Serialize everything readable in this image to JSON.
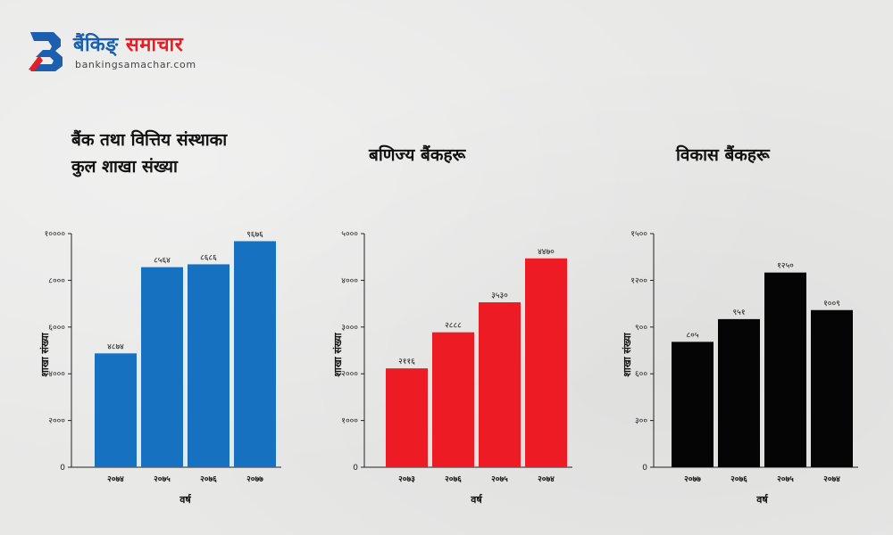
{
  "logo": {
    "name_part1": "बैंकिङ्",
    "name_part2": "समाचार",
    "url": "bankingsamachar.com"
  },
  "colors": {
    "blue": "#1672c0",
    "red": "#ed1c24",
    "black": "#050505",
    "brand_blue": "#1b5fae",
    "brand_red": "#e21f26"
  },
  "chart_data": [
    {
      "type": "bar",
      "title_line1": "बैंक तथा वित्तिय संस्थाका",
      "title_line2": "कुल शाखा संख्या",
      "xlabel": "वर्ष",
      "ylabel": "शाखा संख्या",
      "categories": [
        "२०७४",
        "२०७५",
        "२०७६",
        "२०७७"
      ],
      "values": [
        4874,
        8564,
        8686,
        9676
      ],
      "value_labels": [
        "४८७४",
        "८५६४",
        "८६८६",
        "९६७६"
      ],
      "ylim": [
        0,
        10000
      ],
      "yticks": [
        0,
        2000,
        4000,
        6000,
        8000,
        10000
      ],
      "ytick_labels": [
        "0",
        "२०००",
        "४०००",
        "६०००",
        "८०००",
        "१००००"
      ],
      "color": "#1672c0"
    },
    {
      "type": "bar",
      "title": "बणिज्य बैंकहरू",
      "xlabel": "वर्ष",
      "ylabel": "शाखा संख्या",
      "categories": [
        "२०७३",
        "२०७६",
        "२०७५",
        "२०७४"
      ],
      "values": [
        2116,
        2888,
        3530,
        4470
      ],
      "value_labels": [
        "२११६",
        "२८८८",
        "३५३०",
        "४४७०"
      ],
      "ylim": [
        0,
        5000
      ],
      "yticks": [
        0,
        1000,
        2000,
        3000,
        4000,
        5000
      ],
      "ytick_labels": [
        "0",
        "१०००",
        "२०००",
        "३०००",
        "४०००",
        "५०००"
      ],
      "color": "#ed1c24"
    },
    {
      "type": "bar",
      "title": "विकास बैंकहरू",
      "xlabel": "वर्ष",
      "ylabel": "शाखा संख्या",
      "categories": [
        "२०७७",
        "२०७६",
        "२०७५",
        "२०७४"
      ],
      "values": [
        805,
        951,
        1250,
        1009
      ],
      "value_labels": [
        "८०५",
        "९५१",
        "१२५०",
        "१००९"
      ],
      "ylim": [
        0,
        1500
      ],
      "yticks": [
        0,
        300,
        600,
        900,
        1200,
        1500
      ],
      "ytick_labels": [
        "0",
        "३००",
        "६००",
        "९००",
        "१२००",
        "१५००"
      ],
      "color": "#050505"
    }
  ]
}
